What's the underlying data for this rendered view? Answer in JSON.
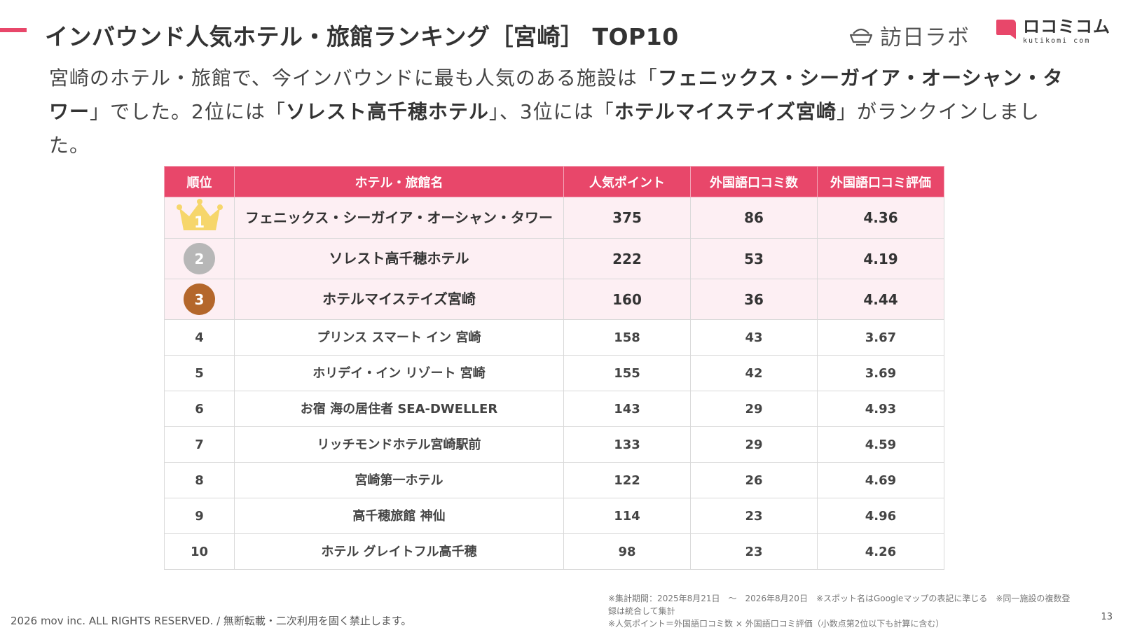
{
  "header": {
    "title": "インバウンド人気ホテル・旅館ランキング［宮崎］ TOP10",
    "logo_houmon": "訪日ラボ",
    "logo_kuchikomi": "ロコミコム",
    "logo_kuchikomi_sub": "kutikomi com"
  },
  "lead": {
    "p1": "宮崎のホテル・旅館で、今インバウンドに最も人気のある施設は「",
    "b1": "フェニックス・シーガイア・オーシャン・タワー",
    "p2": "」でした。2位には「",
    "b2": "ソレスト高千穂ホテル",
    "p3": "」、3位には「",
    "b3": "ホテルマイステイズ宮崎",
    "p4": "」がランクインしました。"
  },
  "table": {
    "headers": [
      "順位",
      "ホテル・旅館名",
      "人気ポイント",
      "外国語口コミ数",
      "外国語口コミ評価"
    ],
    "rows": [
      {
        "rank": "1",
        "name": "フェニックス・シーガイア・オーシャン・タワー",
        "points": "375",
        "reviews": "86",
        "rating": "4.36"
      },
      {
        "rank": "2",
        "name": "ソレスト高千穂ホテル",
        "points": "222",
        "reviews": "53",
        "rating": "4.19"
      },
      {
        "rank": "3",
        "name": "ホテルマイステイズ宮崎",
        "points": "160",
        "reviews": "36",
        "rating": "4.44"
      },
      {
        "rank": "4",
        "name": "プリンス スマート イン 宮崎",
        "points": "158",
        "reviews": "43",
        "rating": "3.67"
      },
      {
        "rank": "5",
        "name": "ホリデイ・イン リゾート 宮崎",
        "points": "155",
        "reviews": "42",
        "rating": "3.69"
      },
      {
        "rank": "6",
        "name": "お宿 海の居住者 SEA-DWELLER",
        "points": "143",
        "reviews": "29",
        "rating": "4.93"
      },
      {
        "rank": "7",
        "name": "リッチモンドホテル宮崎駅前",
        "points": "133",
        "reviews": "29",
        "rating": "4.59"
      },
      {
        "rank": "8",
        "name": "宮崎第一ホテル",
        "points": "122",
        "reviews": "26",
        "rating": "4.69"
      },
      {
        "rank": "9",
        "name": "高千穂旅館 神仙",
        "points": "114",
        "reviews": "23",
        "rating": "4.96"
      },
      {
        "rank": "10",
        "name": "ホテル グレイトフル高千穂",
        "points": "98",
        "reviews": "23",
        "rating": "4.26"
      }
    ]
  },
  "footer": {
    "copyright": "2026 mov inc. ALL RIGHTS RESERVED. / 無断転載・二次利用を固く禁止します。",
    "note1": "※集計期間：2025年8月21日　〜　2026年8月20日　※スポット名はGoogleマップの表記に準じる　※同一施設の複数登録は統合して集計",
    "note2": "※人気ポイント＝外国語口コミ数 × 外国語口コミ評価（小数点第2位以下も計算に含む）",
    "page_number": "13"
  },
  "colors": {
    "accent": "#e8476a",
    "highlight_row": "#fdeff3",
    "gold": "#f6d66b",
    "silver": "#b7b7b7",
    "bronze": "#b4672b"
  },
  "icons": {
    "houmon_logo": "bowl-icon",
    "kuchikomi_logo": "speech-bubble-icon",
    "rank1": "crown-icon"
  }
}
